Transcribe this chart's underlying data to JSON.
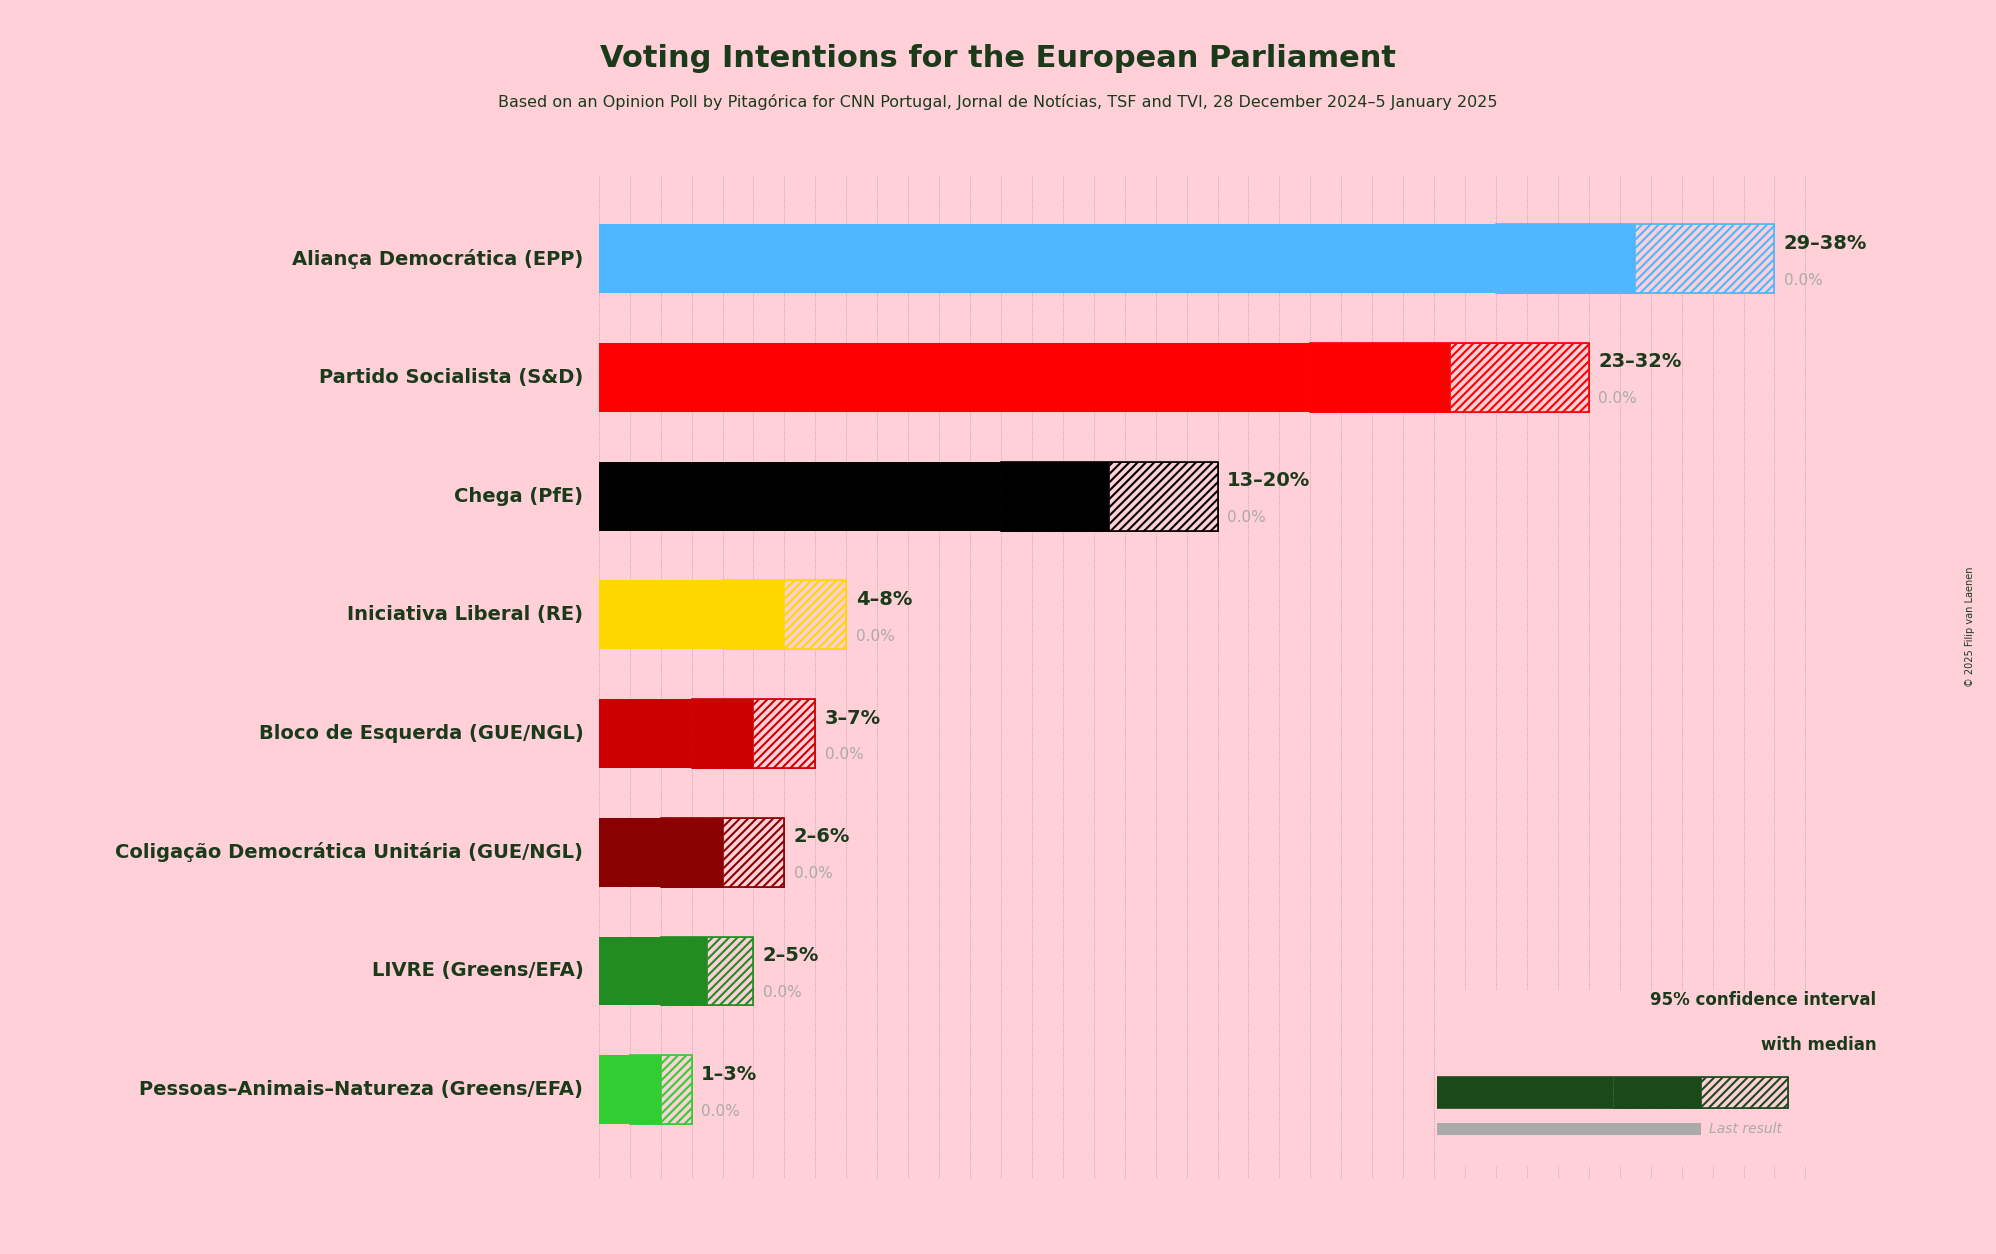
{
  "title": "Voting Intentions for the European Parliament",
  "subtitle": "Based on an Opinion Poll by Pitagórica for CNN Portugal, Jornal de Notícias, TSF and TVI, 28 December 2024–5 January 2025",
  "copyright": "© 2025 Filip van Laenen",
  "background_color": "#FFD0D8",
  "text_color": "#1a3a1a",
  "parties": [
    {
      "name": "Aliança Democrática (EPP)",
      "low": 29,
      "high": 38,
      "last": 0.0,
      "color": "#4db8ff",
      "label": "29–38%"
    },
    {
      "name": "Partido Socialista (S&D)",
      "low": 23,
      "high": 32,
      "last": 0.0,
      "color": "#FF0000",
      "label": "23–32%"
    },
    {
      "name": "Chega (PfE)",
      "low": 13,
      "high": 20,
      "last": 0.0,
      "color": "#000000",
      "label": "13–20%"
    },
    {
      "name": "Iniciativa Liberal (RE)",
      "low": 4,
      "high": 8,
      "last": 0.0,
      "color": "#FFD700",
      "label": "4–8%"
    },
    {
      "name": "Bloco de Esquerda (GUE/NGL)",
      "low": 3,
      "high": 7,
      "last": 0.0,
      "color": "#CC0000",
      "label": "3–7%"
    },
    {
      "name": "Coligação Democrática Unitária (GUE/NGL)",
      "low": 2,
      "high": 6,
      "last": 0.0,
      "color": "#8B0000",
      "label": "2–6%"
    },
    {
      "name": "LIVRE (Greens/EFA)",
      "low": 2,
      "high": 5,
      "last": 0.0,
      "color": "#228B22",
      "label": "2–5%"
    },
    {
      "name": "Pessoas–Animais–Natureza (Greens/EFA)",
      "low": 1,
      "high": 3,
      "last": 0.0,
      "color": "#32CD32",
      "label": "1–3%"
    }
  ],
  "xlim_max": 40,
  "grid_color": "#888888",
  "legend_color_dark": "#1a4a1a",
  "legend_gray": "#aaaaaa",
  "label_fontsize": 14,
  "name_fontsize": 14,
  "bar_height": 0.58
}
